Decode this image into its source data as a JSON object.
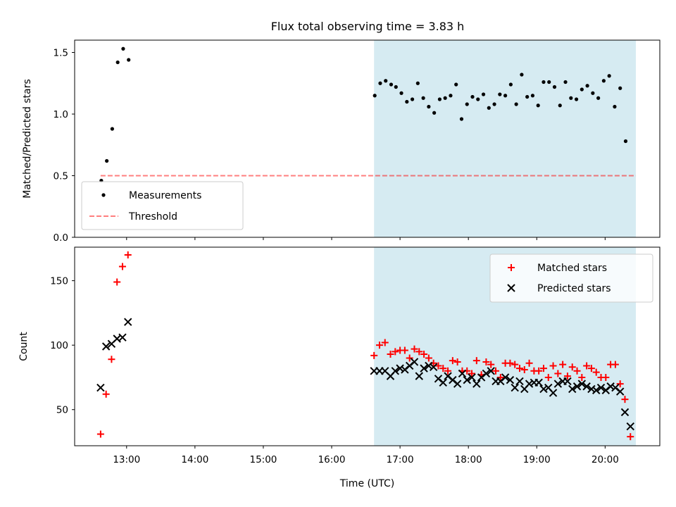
{
  "title": "Flux total observing time = 3.83 h",
  "colors": {
    "shade": "#add8e6",
    "measurement": "#000000",
    "threshold": "#ff0000",
    "matched": "#ff0000",
    "predicted": "#000000"
  },
  "chart_data": [
    {
      "type": "scatter",
      "panel": "top",
      "ylabel": "Matched/Predicted stars",
      "xlim": [
        12.24,
        20.8
      ],
      "ylim": [
        0.0,
        1.6
      ],
      "yticks": [
        {
          "value": 0.0,
          "label": "0.0"
        },
        {
          "value": 0.5,
          "label": "0.5"
        },
        {
          "value": 1.0,
          "label": "1.0"
        },
        {
          "value": 1.5,
          "label": "1.5"
        }
      ],
      "shaded_span": [
        16.62,
        20.45
      ],
      "threshold": {
        "value": 0.5,
        "x_range": [
          12.62,
          20.45
        ]
      },
      "legend": {
        "placement": "lower-left",
        "entries": [
          {
            "label": "Measurements",
            "marker": "dot"
          },
          {
            "label": "Threshold",
            "marker": "dashed-line"
          }
        ]
      },
      "series": [
        {
          "name": "Measurements",
          "points": [
            [
              12.63,
              0.46
            ],
            [
              12.71,
              0.62
            ],
            [
              12.79,
              0.88
            ],
            [
              12.87,
              1.42
            ],
            [
              12.95,
              1.53
            ],
            [
              13.03,
              1.44
            ],
            [
              16.63,
              1.15
            ],
            [
              16.71,
              1.25
            ],
            [
              16.79,
              1.27
            ],
            [
              16.87,
              1.24
            ],
            [
              16.94,
              1.22
            ],
            [
              17.02,
              1.17
            ],
            [
              17.1,
              1.1
            ],
            [
              17.18,
              1.12
            ],
            [
              17.26,
              1.25
            ],
            [
              17.34,
              1.13
            ],
            [
              17.42,
              1.06
            ],
            [
              17.5,
              1.01
            ],
            [
              17.58,
              1.12
            ],
            [
              17.66,
              1.13
            ],
            [
              17.74,
              1.15
            ],
            [
              17.82,
              1.24
            ],
            [
              17.9,
              0.96
            ],
            [
              17.98,
              1.08
            ],
            [
              18.06,
              1.14
            ],
            [
              18.14,
              1.12
            ],
            [
              18.22,
              1.16
            ],
            [
              18.3,
              1.05
            ],
            [
              18.38,
              1.08
            ],
            [
              18.46,
              1.16
            ],
            [
              18.54,
              1.15
            ],
            [
              18.62,
              1.24
            ],
            [
              18.7,
              1.08
            ],
            [
              18.78,
              1.32
            ],
            [
              18.86,
              1.14
            ],
            [
              18.94,
              1.15
            ],
            [
              19.02,
              1.07
            ],
            [
              19.1,
              1.26
            ],
            [
              19.18,
              1.26
            ],
            [
              19.26,
              1.22
            ],
            [
              19.34,
              1.07
            ],
            [
              19.42,
              1.26
            ],
            [
              19.5,
              1.13
            ],
            [
              19.58,
              1.12
            ],
            [
              19.66,
              1.2
            ],
            [
              19.74,
              1.23
            ],
            [
              19.82,
              1.17
            ],
            [
              19.9,
              1.13
            ],
            [
              19.98,
              1.27
            ],
            [
              20.06,
              1.31
            ],
            [
              20.14,
              1.06
            ],
            [
              20.22,
              1.21
            ],
            [
              20.3,
              0.78
            ]
          ]
        }
      ]
    },
    {
      "type": "scatter",
      "panel": "bottom",
      "xlabel": "Time (UTC)",
      "ylabel": "Count",
      "xlim": [
        12.24,
        20.8
      ],
      "ylim": [
        22,
        176
      ],
      "xticks": [
        {
          "value": 13,
          "label": "13:00"
        },
        {
          "value": 14,
          "label": "14:00"
        },
        {
          "value": 15,
          "label": "15:00"
        },
        {
          "value": 16,
          "label": "16:00"
        },
        {
          "value": 17,
          "label": "17:00"
        },
        {
          "value": 18,
          "label": "18:00"
        },
        {
          "value": 19,
          "label": "19:00"
        },
        {
          "value": 20,
          "label": "20:00"
        }
      ],
      "yticks": [
        {
          "value": 50,
          "label": "50"
        },
        {
          "value": 100,
          "label": "100"
        },
        {
          "value": 150,
          "label": "150"
        }
      ],
      "shaded_span": [
        16.62,
        20.45
      ],
      "legend": {
        "placement": "upper-right",
        "entries": [
          {
            "label": "Matched stars",
            "marker": "plus"
          },
          {
            "label": "Predicted stars",
            "marker": "cross"
          }
        ]
      },
      "series": [
        {
          "name": "Matched stars",
          "marker": "plus",
          "points": [
            [
              12.62,
              31
            ],
            [
              12.7,
              62
            ],
            [
              12.78,
              89
            ],
            [
              12.86,
              149
            ],
            [
              12.94,
              161
            ],
            [
              13.02,
              170
            ],
            [
              16.62,
              92
            ],
            [
              16.7,
              100
            ],
            [
              16.78,
              102
            ],
            [
              16.86,
              93
            ],
            [
              16.93,
              95
            ],
            [
              17.0,
              96
            ],
            [
              17.07,
              96
            ],
            [
              17.14,
              90
            ],
            [
              17.21,
              97
            ],
            [
              17.28,
              95
            ],
            [
              17.35,
              93
            ],
            [
              17.42,
              90
            ],
            [
              17.49,
              86
            ],
            [
              17.56,
              84
            ],
            [
              17.63,
              82
            ],
            [
              17.7,
              80
            ],
            [
              17.77,
              88
            ],
            [
              17.84,
              87
            ],
            [
              17.91,
              80
            ],
            [
              17.98,
              80
            ],
            [
              18.05,
              78
            ],
            [
              18.12,
              88
            ],
            [
              18.19,
              77
            ],
            [
              18.26,
              87
            ],
            [
              18.33,
              85
            ],
            [
              18.4,
              80
            ],
            [
              18.47,
              75
            ],
            [
              18.54,
              86
            ],
            [
              18.61,
              86
            ],
            [
              18.68,
              85
            ],
            [
              18.75,
              82
            ],
            [
              18.82,
              81
            ],
            [
              18.89,
              86
            ],
            [
              18.96,
              80
            ],
            [
              19.03,
              80
            ],
            [
              19.1,
              82
            ],
            [
              19.17,
              75
            ],
            [
              19.24,
              84
            ],
            [
              19.31,
              78
            ],
            [
              19.38,
              85
            ],
            [
              19.45,
              76
            ],
            [
              19.52,
              83
            ],
            [
              19.59,
              80
            ],
            [
              19.66,
              75
            ],
            [
              19.73,
              84
            ],
            [
              19.8,
              82
            ],
            [
              19.87,
              79
            ],
            [
              19.94,
              75
            ],
            [
              20.01,
              75
            ],
            [
              20.08,
              85
            ],
            [
              20.15,
              85
            ],
            [
              20.22,
              70
            ],
            [
              20.29,
              58
            ],
            [
              20.37,
              29
            ]
          ]
        },
        {
          "name": "Predicted stars",
          "marker": "cross",
          "points": [
            [
              12.62,
              67
            ],
            [
              12.7,
              99
            ],
            [
              12.78,
              101
            ],
            [
              12.86,
              105
            ],
            [
              12.94,
              106
            ],
            [
              13.02,
              118
            ],
            [
              16.62,
              80
            ],
            [
              16.7,
              80
            ],
            [
              16.78,
              80
            ],
            [
              16.86,
              76
            ],
            [
              16.93,
              80
            ],
            [
              17.0,
              82
            ],
            [
              17.07,
              81
            ],
            [
              17.14,
              84
            ],
            [
              17.21,
              87
            ],
            [
              17.28,
              76
            ],
            [
              17.35,
              82
            ],
            [
              17.42,
              84
            ],
            [
              17.49,
              83
            ],
            [
              17.56,
              74
            ],
            [
              17.63,
              71
            ],
            [
              17.7,
              76
            ],
            [
              17.77,
              73
            ],
            [
              17.84,
              70
            ],
            [
              17.91,
              78
            ],
            [
              17.98,
              73
            ],
            [
              18.05,
              75
            ],
            [
              18.12,
              70
            ],
            [
              18.19,
              75
            ],
            [
              18.26,
              78
            ],
            [
              18.33,
              80
            ],
            [
              18.4,
              72
            ],
            [
              18.47,
              72
            ],
            [
              18.54,
              75
            ],
            [
              18.61,
              73
            ],
            [
              18.68,
              67
            ],
            [
              18.75,
              72
            ],
            [
              18.82,
              66
            ],
            [
              18.89,
              70
            ],
            [
              18.96,
              71
            ],
            [
              19.03,
              71
            ],
            [
              19.1,
              66
            ],
            [
              19.17,
              67
            ],
            [
              19.24,
              63
            ],
            [
              19.31,
              70
            ],
            [
              19.38,
              72
            ],
            [
              19.45,
              72
            ],
            [
              19.52,
              66
            ],
            [
              19.59,
              68
            ],
            [
              19.66,
              70
            ],
            [
              19.73,
              68
            ],
            [
              19.8,
              66
            ],
            [
              19.87,
              65
            ],
            [
              19.94,
              67
            ],
            [
              20.01,
              65
            ],
            [
              20.08,
              68
            ],
            [
              20.15,
              67
            ],
            [
              20.22,
              64
            ],
            [
              20.29,
              48
            ],
            [
              20.37,
              37
            ]
          ]
        }
      ]
    }
  ]
}
